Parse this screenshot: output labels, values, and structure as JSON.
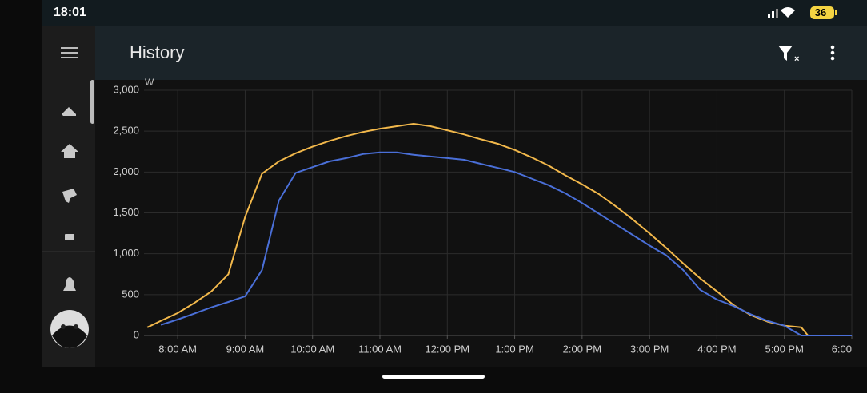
{
  "status_bar": {
    "time": "18:01",
    "battery": "36"
  },
  "header": {
    "title": "History"
  },
  "chart_data": {
    "type": "line",
    "y_unit": "W",
    "grid": true,
    "x": [
      7.55,
      7.75,
      8.0,
      8.25,
      8.5,
      8.75,
      9.0,
      9.25,
      9.5,
      9.75,
      10.0,
      10.25,
      10.5,
      10.75,
      11.0,
      11.25,
      11.5,
      11.75,
      12.0,
      12.25,
      12.5,
      12.75,
      13.0,
      13.25,
      13.5,
      13.75,
      14.0,
      14.25,
      14.5,
      14.75,
      15.0,
      15.25,
      15.5,
      15.75,
      16.0,
      16.25,
      16.5,
      16.75,
      17.0,
      17.25,
      17.35,
      17.5,
      17.75,
      18.0
    ],
    "series": [
      {
        "color": "#f2b84b",
        "values": [
          100,
          180,
          275,
          400,
          540,
          750,
          1450,
          1980,
          2130,
          2230,
          2310,
          2380,
          2440,
          2490,
          2530,
          2560,
          2590,
          2560,
          2510,
          2460,
          2400,
          2345,
          2270,
          2180,
          2080,
          1960,
          1850,
          1730,
          1580,
          1420,
          1250,
          1070,
          880,
          700,
          540,
          370,
          250,
          170,
          120,
          100,
          0,
          0,
          0,
          0
        ]
      },
      {
        "color": "#4a6fd8",
        "values": [
          null,
          130,
          195,
          270,
          345,
          410,
          480,
          800,
          1650,
          1990,
          2060,
          2130,
          2170,
          2220,
          2240,
          2240,
          2210,
          2190,
          2170,
          2150,
          2100,
          2050,
          2000,
          1920,
          1840,
          1740,
          1620,
          1490,
          1360,
          1230,
          1100,
          980,
          800,
          560,
          440,
          360,
          260,
          180,
          120,
          0,
          0,
          0,
          0,
          0
        ]
      }
    ],
    "xlim": [
      7.5,
      18.0
    ],
    "xticks": [
      {
        "value": 8,
        "label": "8:00 AM"
      },
      {
        "value": 9,
        "label": "9:00 AM"
      },
      {
        "value": 10,
        "label": "10:00 AM"
      },
      {
        "value": 11,
        "label": "11:00 AM"
      },
      {
        "value": 12,
        "label": "12:00 PM"
      },
      {
        "value": 13,
        "label": "1:00 PM"
      },
      {
        "value": 14,
        "label": "2:00 PM"
      },
      {
        "value": 15,
        "label": "3:00 PM"
      },
      {
        "value": 16,
        "label": "4:00 PM"
      },
      {
        "value": 17,
        "label": "5:00 PM"
      },
      {
        "value": 18,
        "label": "6:00"
      }
    ],
    "ylim": [
      0,
      3000
    ],
    "yticks": [
      0,
      500,
      {
        "value": 1000,
        "label": "1,000"
      },
      {
        "value": 1500,
        "label": "1,500"
      },
      {
        "value": 2000,
        "label": "2,000"
      },
      {
        "value": 2500,
        "label": "2,500"
      },
      {
        "value": 3000,
        "label": "3,000"
      }
    ]
  }
}
